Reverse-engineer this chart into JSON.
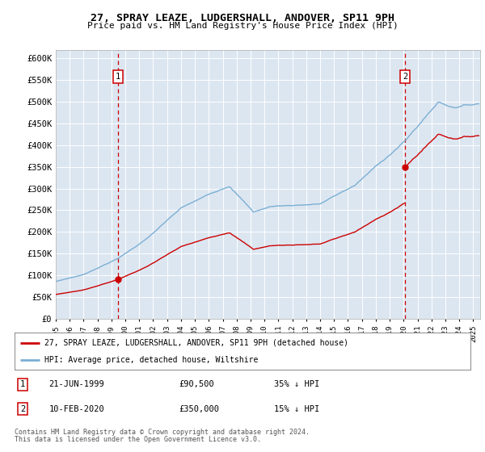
{
  "title": "27, SPRAY LEAZE, LUDGERSHALL, ANDOVER, SP11 9PH",
  "subtitle": "Price paid vs. HM Land Registry's House Price Index (HPI)",
  "ylim": [
    0,
    620000
  ],
  "yticks": [
    0,
    50000,
    100000,
    150000,
    200000,
    250000,
    300000,
    350000,
    400000,
    450000,
    500000,
    550000,
    600000
  ],
  "ytick_labels": [
    "£0",
    "£50K",
    "£100K",
    "£150K",
    "£200K",
    "£250K",
    "£300K",
    "£350K",
    "£400K",
    "£450K",
    "£500K",
    "£550K",
    "£600K"
  ],
  "xlim_start": 1995.0,
  "xlim_end": 2025.5,
  "background_color": "#dce6f1",
  "grid_color": "#ffffff",
  "hpi_color": "#7bafd4",
  "price_color": "#cc0000",
  "vline_color": "#cc0000",
  "sale1_x": 1999.47,
  "sale1_y": 90500,
  "sale2_x": 2020.11,
  "sale2_y": 350000,
  "legend_line1": "27, SPRAY LEAZE, LUDGERSHALL, ANDOVER, SP11 9PH (detached house)",
  "legend_line2": "HPI: Average price, detached house, Wiltshire",
  "footnote1": "Contains HM Land Registry data © Crown copyright and database right 2024.",
  "footnote2": "This data is licensed under the Open Government Licence v3.0.",
  "table_row1": [
    "1",
    "21-JUN-1999",
    "£90,500",
    "35% ↓ HPI"
  ],
  "table_row2": [
    "2",
    "10-FEB-2020",
    "£350,000",
    "15% ↓ HPI"
  ]
}
